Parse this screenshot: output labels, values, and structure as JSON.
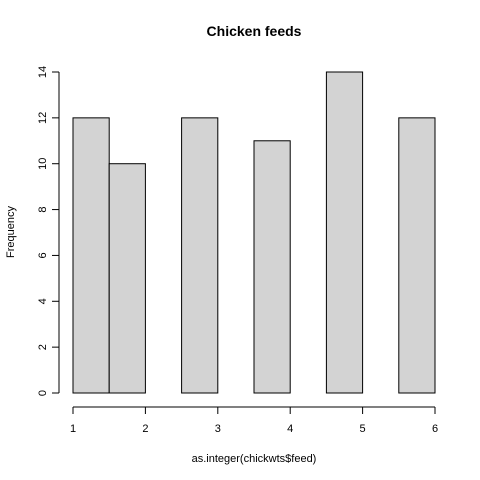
{
  "chart_data": {
    "type": "bar",
    "subtype": "histogram",
    "title": "Chicken feeds",
    "xlabel": "as.integer(chickwts$feed)",
    "ylabel": "Frequency",
    "bins": [
      {
        "from": 1.0,
        "to": 1.5,
        "count": 12
      },
      {
        "from": 1.5,
        "to": 2.0,
        "count": 10
      },
      {
        "from": 2.0,
        "to": 2.5,
        "count": 0
      },
      {
        "from": 2.5,
        "to": 3.0,
        "count": 12
      },
      {
        "from": 3.0,
        "to": 3.5,
        "count": 0
      },
      {
        "from": 3.5,
        "to": 4.0,
        "count": 11
      },
      {
        "from": 4.0,
        "to": 4.5,
        "count": 0
      },
      {
        "from": 4.5,
        "to": 5.0,
        "count": 14
      },
      {
        "from": 5.0,
        "to": 5.5,
        "count": 0
      },
      {
        "from": 5.5,
        "to": 6.0,
        "count": 12
      }
    ],
    "xlim": [
      1,
      6
    ],
    "ylim": [
      0,
      14
    ],
    "xticks": [
      "1",
      "2",
      "3",
      "4",
      "5",
      "6"
    ],
    "yticks": [
      "0",
      "2",
      "4",
      "6",
      "8",
      "10",
      "12",
      "14"
    ],
    "grid": false,
    "colors": {
      "bar_fill": "#d3d3d3",
      "bar_stroke": "#000000"
    }
  }
}
